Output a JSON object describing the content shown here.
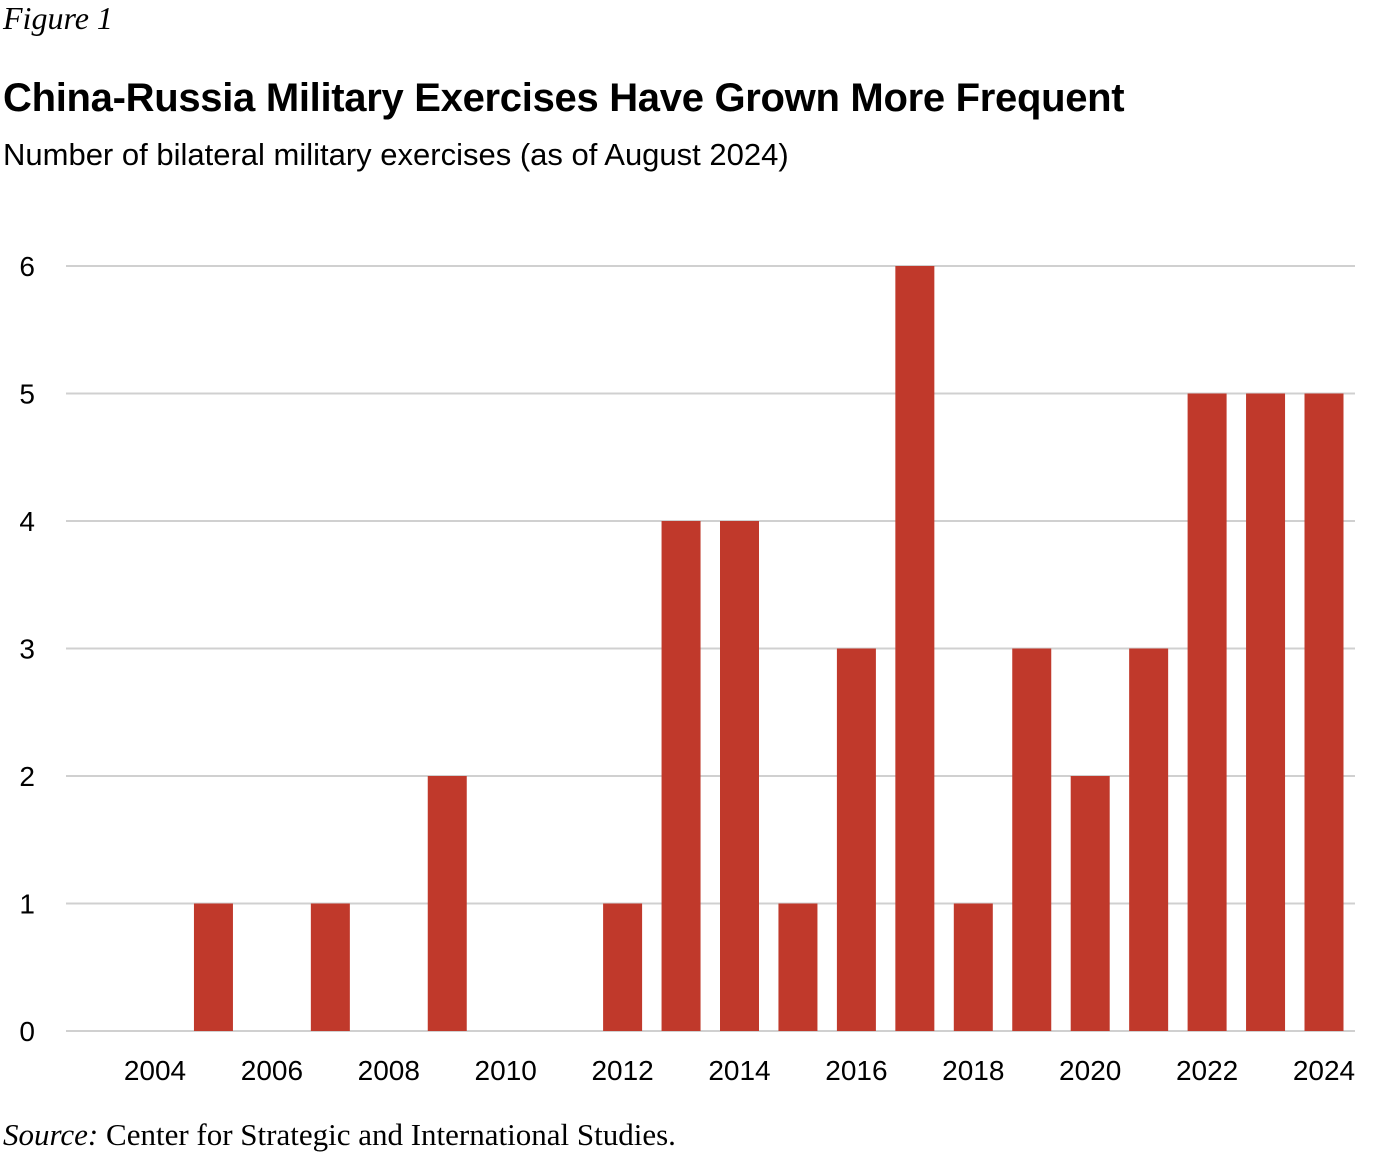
{
  "figure_label": "Figure 1",
  "source_label": "Source:",
  "source_text": "Center for Strategic and International Studies.",
  "chart_data": {
    "type": "bar",
    "title": "China-Russia Military Exercises Have Grown More Frequent",
    "subtitle": "Number of bilateral military exercises (as of August 2024)",
    "xlabel": "",
    "ylabel": "",
    "categories": [
      2004,
      2005,
      2006,
      2007,
      2008,
      2009,
      2010,
      2011,
      2012,
      2013,
      2014,
      2015,
      2016,
      2017,
      2018,
      2019,
      2020,
      2021,
      2022,
      2023,
      2024
    ],
    "values": [
      0,
      1,
      0,
      1,
      0,
      2,
      0,
      0,
      1,
      4,
      4,
      1,
      3,
      6,
      1,
      3,
      2,
      3,
      5,
      5,
      5
    ],
    "x_tick_labels": [
      "2004",
      "2006",
      "2008",
      "2010",
      "2012",
      "2014",
      "2016",
      "2018",
      "2020",
      "2022",
      "2024"
    ],
    "y_tick_labels": [
      "0",
      "1",
      "2",
      "3",
      "4",
      "5",
      "6"
    ],
    "ylim": [
      0,
      6
    ],
    "grid": "horizontal",
    "legend": "none",
    "bar_color": "#c0392b",
    "grid_color": "#d0d0d0"
  }
}
